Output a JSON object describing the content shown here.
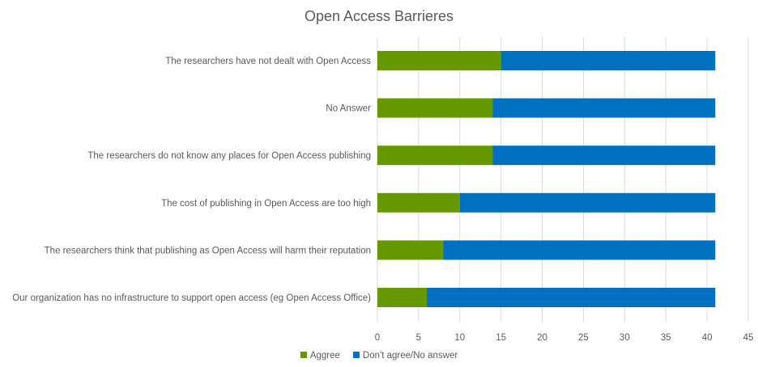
{
  "chart_data": {
    "type": "bar",
    "orientation": "horizontal",
    "stacked": true,
    "title": "Open Access Barrieres",
    "categories": [
      "The researchers have not dealt with Open Access",
      "No Answer",
      "The researchers do not know any places for Open Access publishing",
      "The cost of publishing in  Open Access are too high",
      "The researchers think that  publishing as Open Access will harm their reputation",
      "Our organization has no infrastructure to support open access (eg Open Access Office)"
    ],
    "series": [
      {
        "name": "Aggree",
        "color": "#669900",
        "values": [
          15,
          14,
          14,
          10,
          8,
          6
        ]
      },
      {
        "name": "Don't agree/No answer",
        "color": "#0070C0",
        "values": [
          26,
          27,
          27,
          31,
          33,
          35
        ]
      }
    ],
    "xlim": [
      0,
      45
    ],
    "xticks": [
      0,
      5,
      10,
      15,
      20,
      25,
      30,
      35,
      40,
      45
    ],
    "grid": "vertical",
    "legend_position": "bottom"
  }
}
